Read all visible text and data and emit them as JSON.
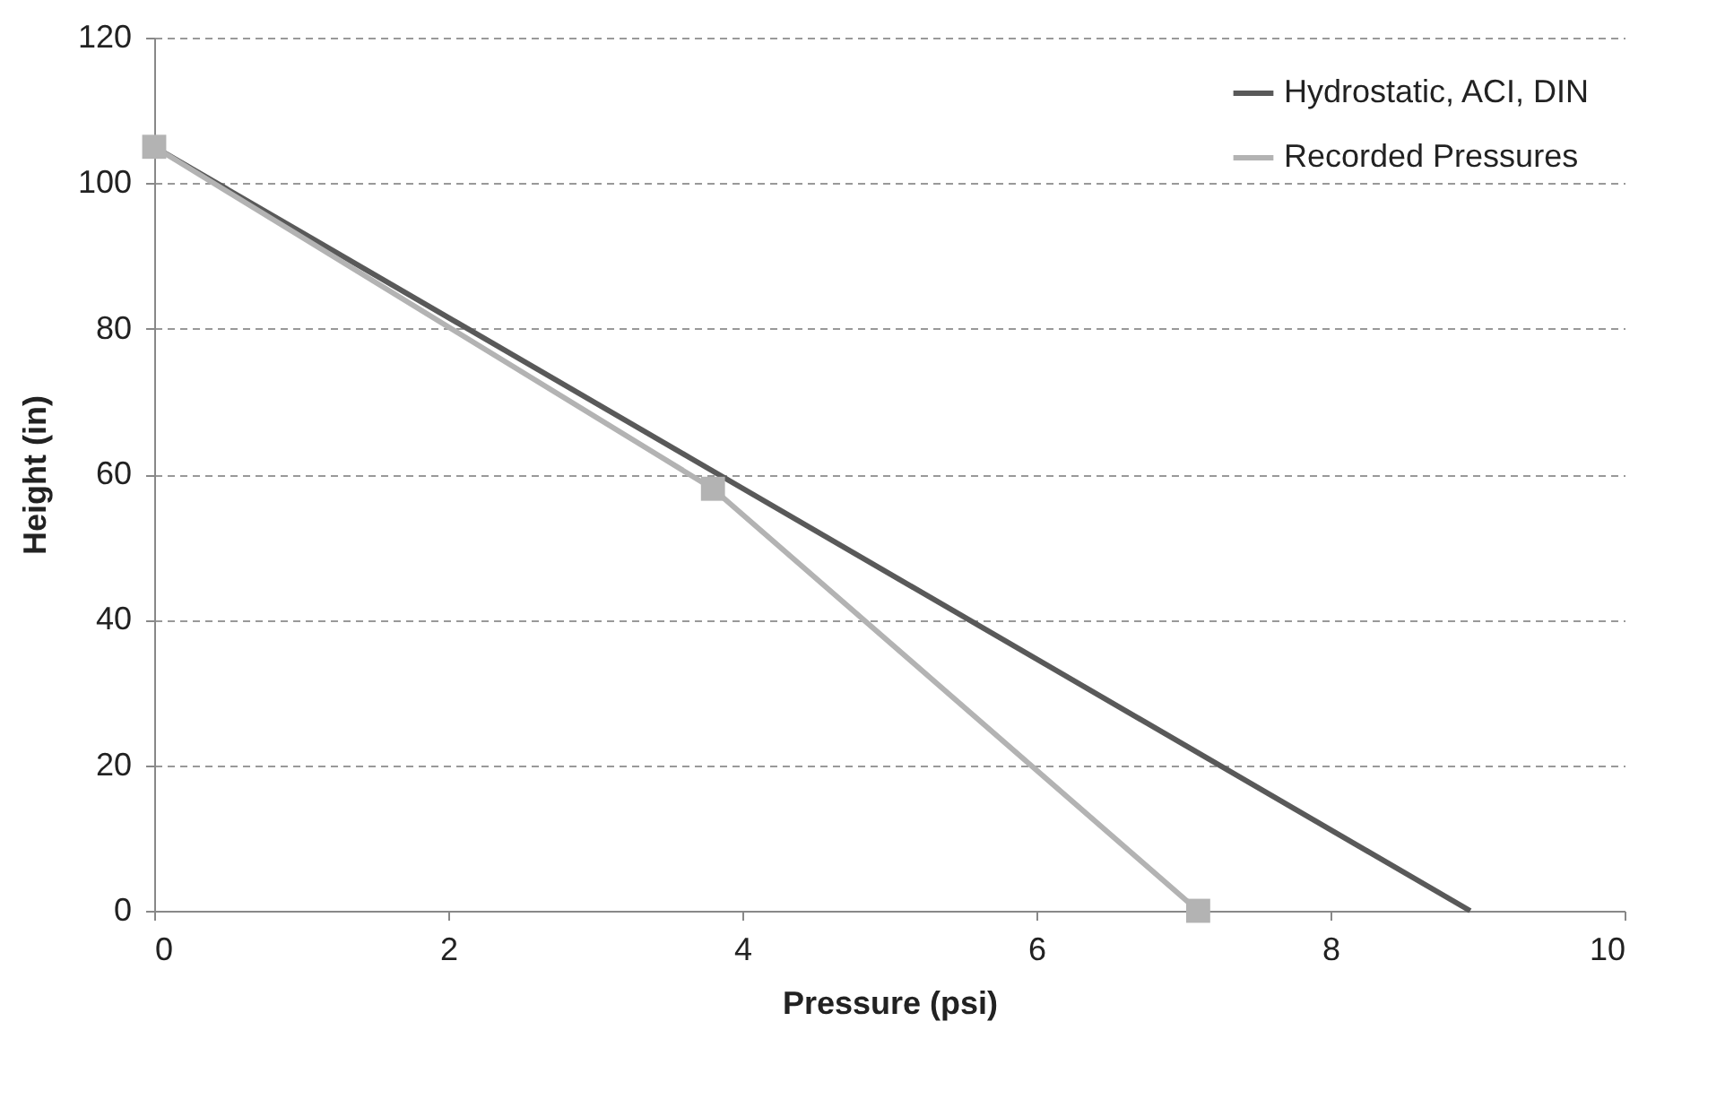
{
  "chart_data": {
    "type": "line",
    "xlabel": "Pressure (psi)",
    "ylabel": "Height (in)",
    "xlim": [
      0,
      10
    ],
    "xticks": [
      0,
      2,
      4,
      6,
      8,
      10
    ],
    "ylim": [
      0,
      120
    ],
    "yticks": [
      0,
      20,
      40,
      60,
      80,
      100,
      120
    ],
    "grid": "y",
    "legend": "top right",
    "series": [
      {
        "name": "Hydrostatic, ACI, DIN",
        "color": "#595959",
        "x": [
          0,
          8.95
        ],
        "values": [
          105,
          0
        ],
        "marker": "none"
      },
      {
        "name": "Recorded Pressures",
        "color": "#b3b3b3",
        "x": [
          0,
          3.8,
          7.1
        ],
        "values": [
          105,
          58,
          0
        ],
        "marker": "square"
      }
    ]
  }
}
